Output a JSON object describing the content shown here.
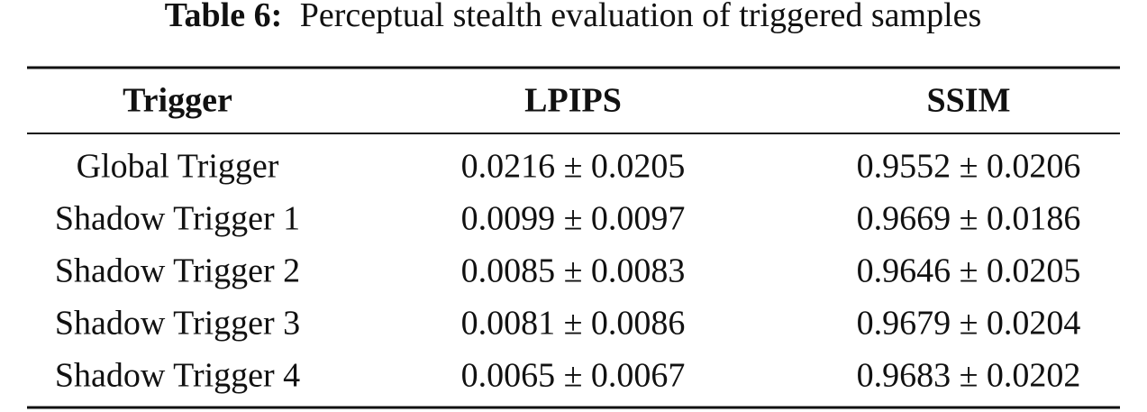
{
  "caption": {
    "label": "Table 6:",
    "text": "Perceptual stealth evaluation of triggered samples"
  },
  "table": {
    "header": [
      "Trigger",
      "LPIPS",
      "SSIM"
    ],
    "rows": [
      [
        "Global Trigger",
        "0.0216 ± 0.0205",
        "0.9552 ± 0.0206"
      ],
      [
        "Shadow Trigger 1",
        "0.0099 ± 0.0097",
        "0.9669 ± 0.0186"
      ],
      [
        "Shadow Trigger 2",
        "0.0085 ± 0.0083",
        "0.9646 ± 0.0205"
      ],
      [
        "Shadow Trigger 3",
        "0.0081 ± 0.0086",
        "0.9679 ± 0.0204"
      ],
      [
        "Shadow Trigger 4",
        "0.0065 ± 0.0067",
        "0.9683 ± 0.0202"
      ]
    ]
  }
}
